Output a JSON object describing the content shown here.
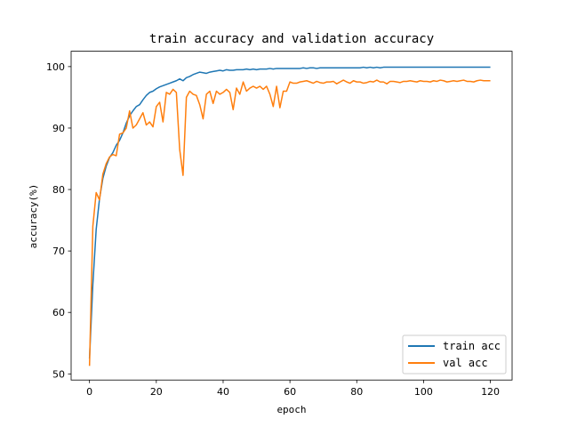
{
  "chart_data": {
    "type": "line",
    "title": "train accuracy and validation accuracy",
    "xlabel": "epoch",
    "ylabel": "accuracy(%)",
    "xlim": [
      -5.5,
      126.5
    ],
    "ylim": [
      49,
      102.5
    ],
    "xticks": [
      0,
      20,
      40,
      60,
      80,
      100,
      120
    ],
    "yticks": [
      50,
      60,
      70,
      80,
      90,
      100
    ],
    "grid": false,
    "legend_position": "bottom-right",
    "x": [
      0,
      1,
      2,
      3,
      4,
      5,
      6,
      7,
      8,
      9,
      10,
      11,
      12,
      13,
      14,
      15,
      16,
      17,
      18,
      19,
      20,
      21,
      22,
      23,
      24,
      25,
      26,
      27,
      28,
      29,
      30,
      31,
      32,
      33,
      34,
      35,
      36,
      37,
      38,
      39,
      40,
      41,
      42,
      43,
      44,
      45,
      46,
      47,
      48,
      49,
      50,
      51,
      52,
      53,
      54,
      55,
      56,
      57,
      58,
      59,
      60,
      61,
      62,
      63,
      64,
      65,
      66,
      67,
      68,
      69,
      70,
      71,
      72,
      73,
      74,
      75,
      76,
      77,
      78,
      79,
      80,
      81,
      82,
      83,
      84,
      85,
      86,
      87,
      88,
      89,
      90,
      91,
      92,
      93,
      94,
      95,
      96,
      97,
      98,
      99,
      100,
      101,
      102,
      103,
      104,
      105,
      106,
      107,
      108,
      109,
      110,
      111,
      112,
      113,
      114,
      115,
      116,
      117,
      118,
      119,
      120
    ],
    "series": [
      {
        "name": "train acc",
        "color": "#1f77b4",
        "values": [
          52.5,
          64.5,
          73.5,
          78.5,
          81.8,
          83.8,
          85.2,
          86.0,
          87.2,
          88.0,
          89.2,
          90.8,
          92.0,
          92.8,
          93.5,
          93.8,
          94.6,
          95.3,
          95.8,
          96.0,
          96.4,
          96.7,
          96.9,
          97.1,
          97.3,
          97.5,
          97.7,
          98.0,
          97.7,
          98.2,
          98.4,
          98.7,
          98.9,
          99.1,
          99.0,
          98.9,
          99.1,
          99.2,
          99.3,
          99.4,
          99.3,
          99.5,
          99.4,
          99.4,
          99.5,
          99.5,
          99.5,
          99.6,
          99.5,
          99.6,
          99.5,
          99.6,
          99.6,
          99.6,
          99.7,
          99.6,
          99.7,
          99.7,
          99.7,
          99.7,
          99.7,
          99.7,
          99.7,
          99.7,
          99.8,
          99.7,
          99.8,
          99.8,
          99.7,
          99.8,
          99.8,
          99.8,
          99.8,
          99.8,
          99.8,
          99.8,
          99.8,
          99.8,
          99.8,
          99.8,
          99.8,
          99.8,
          99.9,
          99.8,
          99.9,
          99.8,
          99.9,
          99.8,
          99.9,
          99.9,
          99.9,
          99.9,
          99.9,
          99.9,
          99.9,
          99.9,
          99.9,
          99.9,
          99.9,
          99.9,
          99.9,
          99.9,
          99.9,
          99.9,
          99.9,
          99.9,
          99.9,
          99.9,
          99.9,
          99.9,
          99.9,
          99.9,
          99.9,
          99.9,
          99.9,
          99.9,
          99.9,
          99.9,
          99.9,
          99.9,
          99.9
        ]
      },
      {
        "name": "val acc",
        "color": "#ff7f0e",
        "values": [
          51.3,
          74.0,
          79.5,
          78.3,
          82.5,
          84.2,
          85.3,
          85.7,
          85.5,
          89.0,
          89.2,
          90.0,
          92.8,
          90.0,
          90.5,
          91.5,
          92.5,
          90.5,
          91.0,
          90.2,
          93.5,
          94.2,
          91.0,
          95.8,
          95.5,
          96.3,
          95.8,
          86.5,
          82.3,
          95.0,
          96.0,
          95.5,
          95.3,
          93.8,
          91.5,
          95.5,
          96.0,
          94.0,
          96.0,
          95.5,
          95.8,
          96.3,
          95.8,
          93.0,
          96.5,
          95.5,
          97.5,
          96.0,
          96.5,
          96.8,
          96.5,
          96.8,
          96.3,
          96.8,
          95.5,
          93.5,
          96.8,
          93.3,
          96.0,
          96.0,
          97.5,
          97.3,
          97.3,
          97.5,
          97.6,
          97.7,
          97.5,
          97.3,
          97.6,
          97.4,
          97.3,
          97.5,
          97.5,
          97.6,
          97.2,
          97.5,
          97.8,
          97.5,
          97.3,
          97.7,
          97.5,
          97.5,
          97.3,
          97.4,
          97.6,
          97.5,
          97.8,
          97.5,
          97.5,
          97.2,
          97.6,
          97.6,
          97.5,
          97.4,
          97.6,
          97.6,
          97.7,
          97.6,
          97.5,
          97.7,
          97.6,
          97.6,
          97.5,
          97.7,
          97.6,
          97.8,
          97.7,
          97.5,
          97.6,
          97.7,
          97.6,
          97.7,
          97.8,
          97.6,
          97.6,
          97.5,
          97.7,
          97.8,
          97.7,
          97.7,
          97.7
        ]
      }
    ]
  }
}
